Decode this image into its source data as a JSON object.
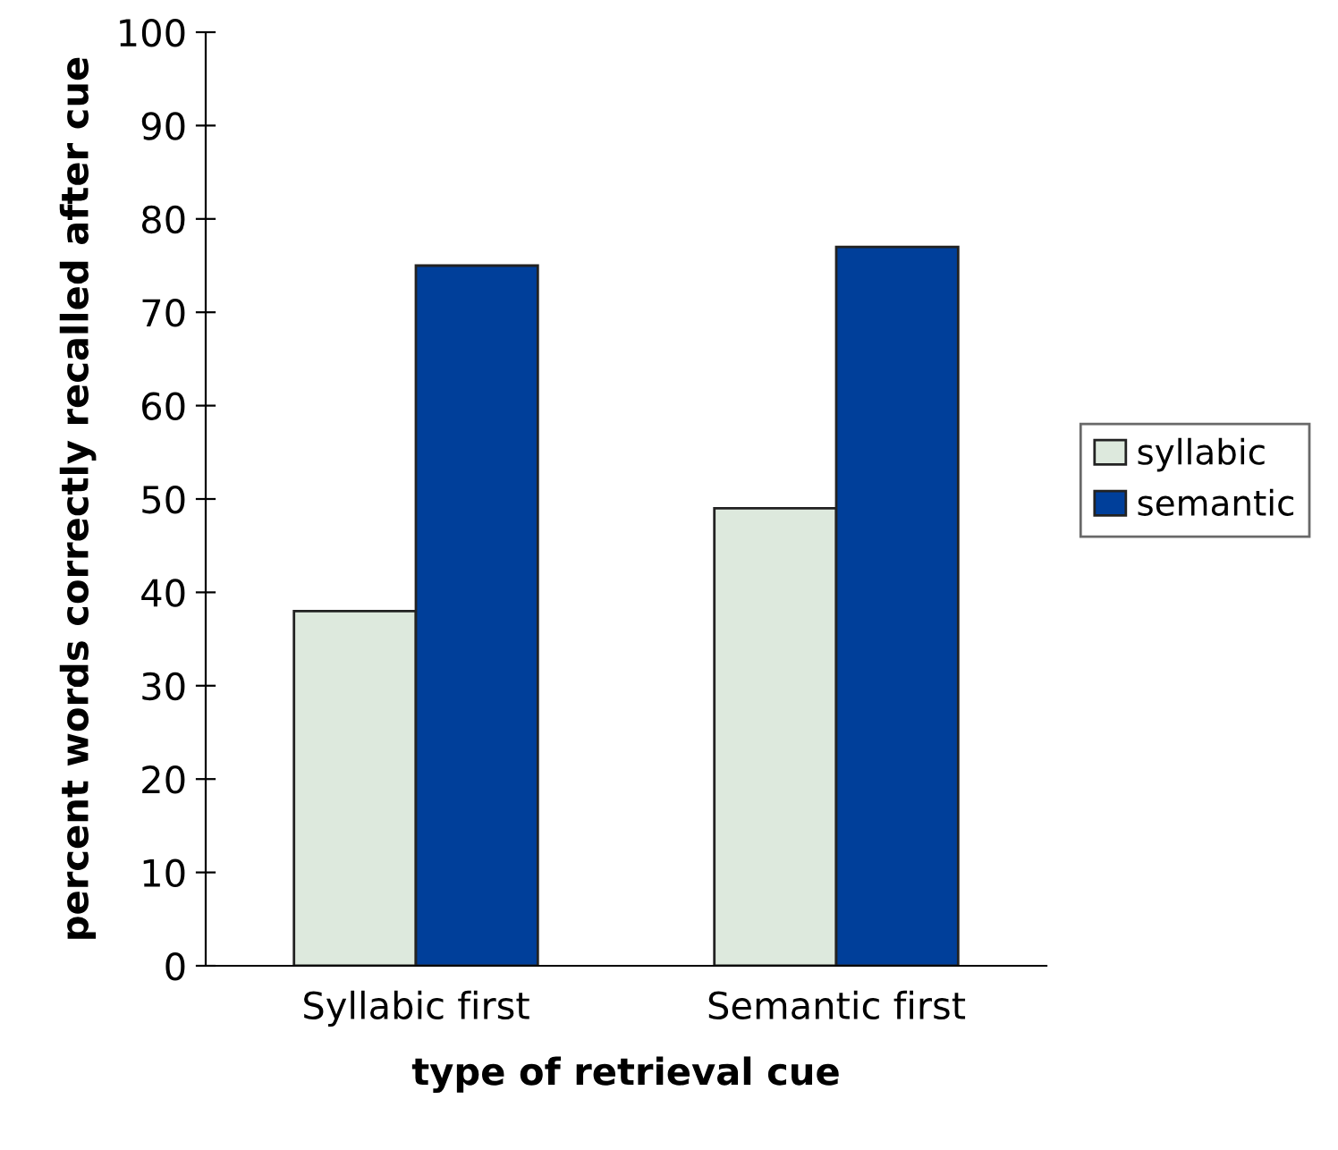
{
  "chart_data": {
    "type": "bar",
    "xlabel": "type of retrieval cue",
    "ylabel": "percent words correctly recalled after cue",
    "categories": [
      "Syllabic first",
      "Semantic first"
    ],
    "series": [
      {
        "name": "syllabic",
        "color": "#dde9dd",
        "values": [
          38,
          49
        ]
      },
      {
        "name": "semantic",
        "color": "#003f9a",
        "values": [
          75,
          77
        ]
      }
    ],
    "ylim": [
      0,
      100
    ],
    "yticks": [
      0,
      10,
      20,
      30,
      40,
      50,
      60,
      70,
      80,
      90,
      100
    ],
    "grid": false,
    "legend": "right"
  }
}
